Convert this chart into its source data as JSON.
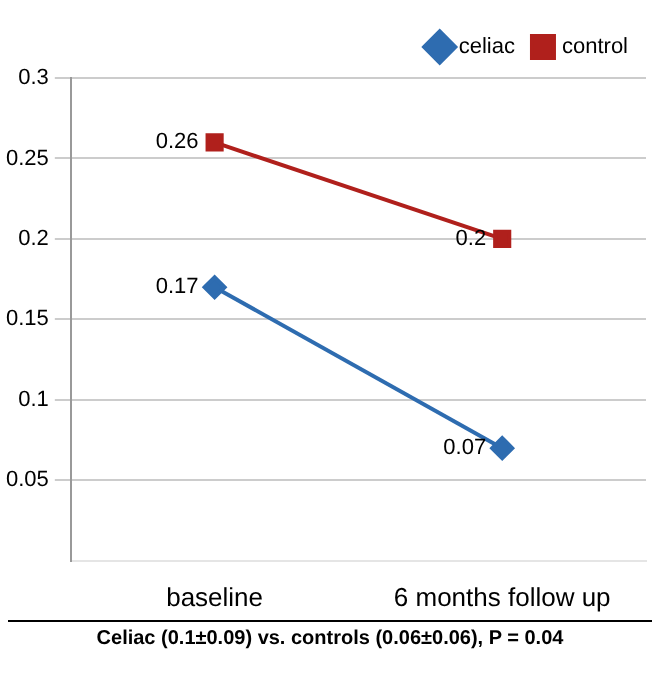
{
  "chart_data": {
    "type": "line",
    "categories": [
      "baseline",
      "6 months follow up"
    ],
    "series": [
      {
        "name": "celiac",
        "color": "#2e6cb0",
        "values": [
          0.17,
          0.07
        ],
        "marker": "diamond"
      },
      {
        "name": "control",
        "color": "#b0201c",
        "values": [
          0.26,
          0.2
        ],
        "marker": "square"
      }
    ],
    "ylim": [
      0,
      0.3
    ],
    "yticks": [
      0.05,
      0.1,
      0.15,
      0.2,
      0.25,
      0.3
    ],
    "grid": "y",
    "legend": "top right",
    "data_labels": true,
    "annotations": [
      "Celiac (0.1±0.09) vs. controls (0.06±0.06), P = 0.04"
    ]
  }
}
